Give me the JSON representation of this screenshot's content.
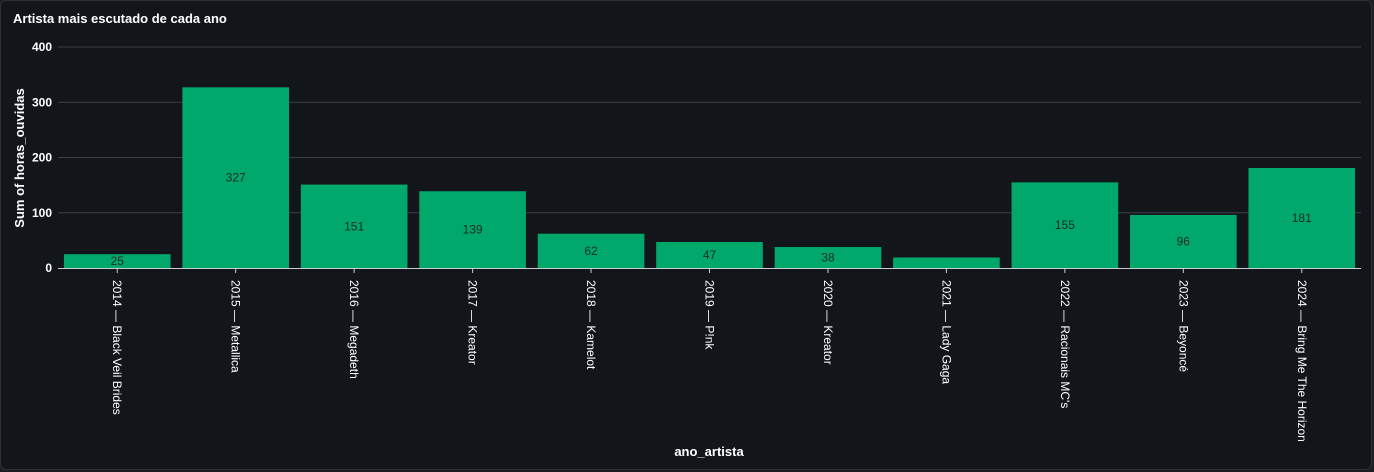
{
  "chart_data": {
    "type": "bar",
    "title": "Artista mais escutado de cada ano",
    "xlabel": "ano_artista",
    "ylabel": "Sum of horas_ouvidas",
    "ylim": [
      0,
      400
    ],
    "yticks": [
      0,
      100,
      200,
      300,
      400
    ],
    "grid": true,
    "bar_color": "#00a86b",
    "categories": [
      "2014 — Black Veil Brides",
      "2015 — Metallica",
      "2016 — Megadeth",
      "2017 — Kreator",
      "2018 — Kamelot",
      "2019 — P!nk",
      "2020 — Kreator",
      "2021 — Lady Gaga",
      "2022 — Racionais MC's",
      "2023 — Beyoncé",
      "2024 — Bring Me The Horizon"
    ],
    "values": [
      25,
      327,
      151,
      139,
      62,
      47,
      38,
      19,
      155,
      96,
      181
    ],
    "data_labels": [
      "25",
      "327",
      "151",
      "139",
      "62",
      "47",
      "38",
      "",
      "155",
      "96",
      "181"
    ]
  }
}
